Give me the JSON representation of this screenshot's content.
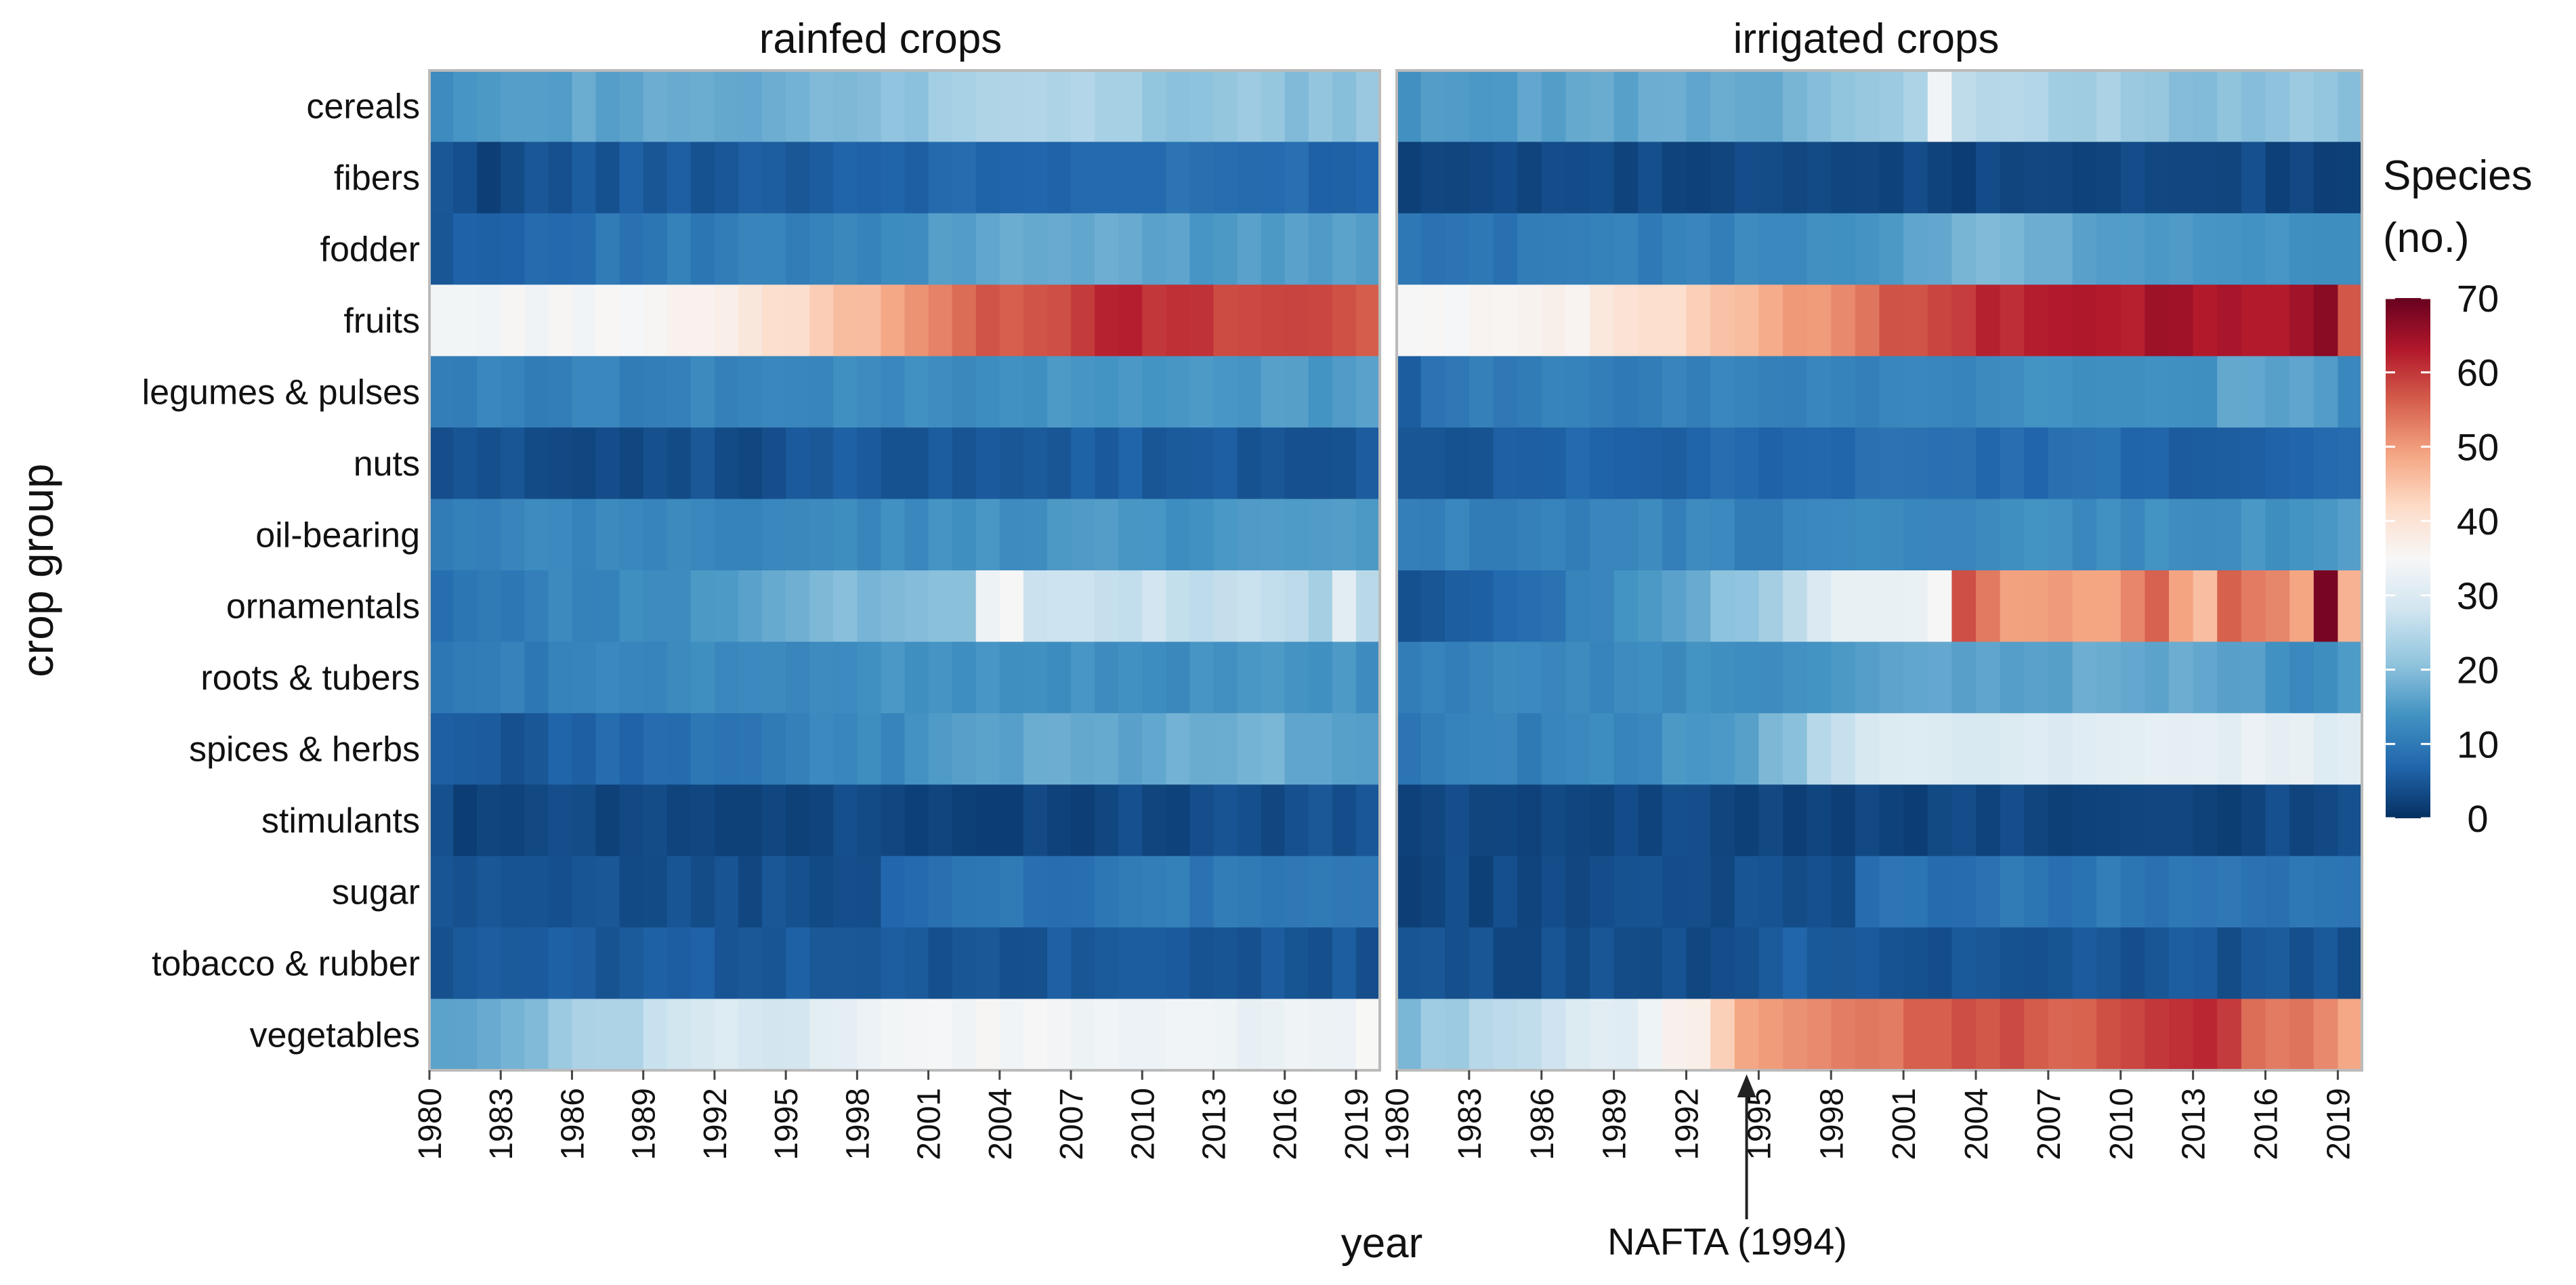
{
  "chart_data": {
    "type": "heatmap",
    "colorscale": "RdBu_r",
    "ylabel": "crop group",
    "xlabel": "year",
    "facets": [
      {
        "title": "rainfed crops",
        "key": "rainfed"
      },
      {
        "title": "irrigated crops",
        "key": "irrigated"
      }
    ],
    "categories": [
      "cereals",
      "fibers",
      "fodder",
      "fruits",
      "legumes & pulses",
      "nuts",
      "oil-bearing",
      "ornamentals",
      "roots & tubers",
      "spices & herbs",
      "stimulants",
      "sugar",
      "tobacco & rubber",
      "vegetables"
    ],
    "x_start": 1980,
    "x_end": 2020,
    "x_ticks": [
      "1980",
      "1983",
      "1986",
      "1989",
      "1992",
      "1995",
      "1998",
      "2001",
      "2004",
      "2007",
      "2010",
      "2013",
      "2016",
      "2019"
    ],
    "colorbar": {
      "title_line1": "Species",
      "title_line2": "(no.)",
      "min": 0,
      "max": 70,
      "ticks": [
        "0",
        "10",
        "20",
        "30",
        "40",
        "50",
        "60",
        "70"
      ]
    },
    "annotation": {
      "text": "NAFTA (1994)",
      "x": 1994,
      "facet": "irrigated"
    },
    "rainfed": {
      "cereals": [
        [
          1980,
          14
        ],
        [
          1982,
          16
        ],
        [
          1992,
          17
        ],
        [
          1998,
          19
        ],
        [
          2000,
          21
        ],
        [
          2002,
          24
        ],
        [
          2005,
          25
        ],
        [
          2008,
          23
        ],
        [
          2012,
          20
        ],
        [
          2014,
          22
        ],
        [
          2016,
          20
        ],
        [
          2019,
          21
        ]
      ],
      "fibers": [
        [
          1980,
          4
        ],
        [
          1982,
          3
        ],
        [
          1985,
          5
        ],
        [
          1995,
          6
        ],
        [
          2000,
          7
        ],
        [
          2005,
          7
        ],
        [
          2010,
          8
        ],
        [
          2015,
          8
        ],
        [
          2019,
          7
        ]
      ],
      "fodder": [
        [
          1980,
          6
        ],
        [
          1983,
          7
        ],
        [
          1986,
          9
        ],
        [
          1990,
          10
        ],
        [
          1995,
          11
        ],
        [
          1999,
          12
        ],
        [
          2001,
          15
        ],
        [
          2005,
          17
        ],
        [
          2010,
          17
        ],
        [
          2012,
          15
        ],
        [
          2015,
          16
        ],
        [
          2019,
          16
        ]
      ],
      "fruits": [
        [
          1980,
          34
        ],
        [
          1992,
          36
        ],
        [
          1993,
          39
        ],
        [
          1995,
          42
        ],
        [
          1997,
          45
        ],
        [
          1999,
          48
        ],
        [
          2000,
          52
        ],
        [
          2002,
          55
        ],
        [
          2004,
          57
        ],
        [
          2007,
          59
        ],
        [
          2008,
          62
        ],
        [
          2011,
          60
        ],
        [
          2014,
          58
        ],
        [
          2019,
          57
        ]
      ],
      "legumes & pulses": [
        [
          1980,
          11
        ],
        [
          1995,
          12
        ],
        [
          2000,
          13
        ],
        [
          2005,
          14
        ],
        [
          2010,
          14
        ],
        [
          2015,
          15
        ],
        [
          2019,
          15
        ]
      ],
      "nuts": [
        [
          1980,
          4
        ],
        [
          1992,
          4
        ],
        [
          1993,
          3
        ],
        [
          1995,
          5
        ],
        [
          2005,
          6
        ],
        [
          2010,
          6
        ],
        [
          2013,
          5
        ],
        [
          2019,
          5
        ]
      ],
      "oil-bearing": [
        [
          1980,
          10
        ],
        [
          1985,
          12
        ],
        [
          1990,
          12
        ],
        [
          1995,
          12
        ],
        [
          2000,
          13
        ],
        [
          2005,
          14
        ],
        [
          2008,
          15
        ],
        [
          2012,
          14
        ],
        [
          2016,
          15
        ],
        [
          2019,
          14
        ]
      ],
      "ornamentals": [
        [
          1980,
          9
        ],
        [
          1986,
          12
        ],
        [
          1990,
          13
        ],
        [
          1992,
          16
        ],
        [
          1995,
          19
        ],
        [
          2000,
          20
        ],
        [
          2002,
          21
        ],
        [
          2003,
          34
        ],
        [
          2004,
          36
        ],
        [
          2005,
          28
        ],
        [
          2010,
          27
        ],
        [
          2015,
          26
        ],
        [
          2017,
          23
        ],
        [
          2018,
          31
        ],
        [
          2019,
          25
        ]
      ],
      "roots & tubers": [
        [
          1980,
          10
        ],
        [
          1985,
          11
        ],
        [
          1990,
          12
        ],
        [
          1995,
          13
        ],
        [
          2000,
          14
        ],
        [
          2005,
          14
        ],
        [
          2010,
          13
        ],
        [
          2015,
          14
        ],
        [
          2019,
          14
        ]
      ],
      "spices & herbs": [
        [
          1980,
          6
        ],
        [
          1984,
          5
        ],
        [
          1987,
          7
        ],
        [
          1990,
          9
        ],
        [
          1995,
          11
        ],
        [
          2000,
          13
        ],
        [
          2002,
          16
        ],
        [
          2005,
          17
        ],
        [
          2010,
          17
        ],
        [
          2015,
          18
        ],
        [
          2019,
          16
        ]
      ],
      "stimulants": [
        [
          1980,
          3
        ],
        [
          2011,
          3
        ],
        [
          2012,
          4
        ],
        [
          2019,
          4
        ]
      ],
      "sugar": [
        [
          1980,
          4
        ],
        [
          1998,
          4
        ],
        [
          1999,
          8
        ],
        [
          2004,
          9
        ],
        [
          2010,
          10
        ],
        [
          2019,
          10
        ]
      ],
      "tobacco & rubber": [
        [
          1980,
          5
        ],
        [
          1995,
          6
        ],
        [
          1997,
          5
        ],
        [
          2019,
          5
        ]
      ],
      "vegetables": [
        [
          1980,
          15
        ],
        [
          1982,
          18
        ],
        [
          1985,
          22
        ],
        [
          1988,
          25
        ],
        [
          1992,
          30
        ],
        [
          1995,
          29
        ],
        [
          1998,
          33
        ],
        [
          2000,
          35
        ],
        [
          2005,
          34
        ],
        [
          2010,
          33
        ],
        [
          2015,
          33
        ],
        [
          2019,
          34
        ]
      ]
    },
    "irrigated": {
      "cereals": [
        [
          1980,
          14
        ],
        [
          1985,
          16
        ],
        [
          1990,
          17
        ],
        [
          1995,
          18
        ],
        [
          1999,
          22
        ],
        [
          2001,
          24
        ],
        [
          2002,
          34
        ],
        [
          2003,
          26
        ],
        [
          2005,
          24
        ],
        [
          2010,
          23
        ],
        [
          2013,
          19
        ],
        [
          2016,
          21
        ],
        [
          2019,
          21
        ]
      ],
      "fibers": [
        [
          1980,
          3
        ],
        [
          2019,
          3
        ]
      ],
      "fodder": [
        [
          1980,
          9
        ],
        [
          1986,
          10
        ],
        [
          1990,
          11
        ],
        [
          1995,
          12
        ],
        [
          1999,
          13
        ],
        [
          2002,
          17
        ],
        [
          2004,
          20
        ],
        [
          2006,
          17
        ],
        [
          2010,
          15
        ],
        [
          2013,
          14
        ],
        [
          2019,
          14
        ]
      ],
      "fruits": [
        [
          1980,
          35
        ],
        [
          1987,
          37
        ],
        [
          1990,
          40
        ],
        [
          1992,
          43
        ],
        [
          1993,
          45
        ],
        [
          1995,
          49
        ],
        [
          1998,
          51
        ],
        [
          2000,
          57
        ],
        [
          2003,
          60
        ],
        [
          2005,
          62
        ],
        [
          2010,
          63
        ],
        [
          2011,
          66
        ],
        [
          2015,
          62
        ],
        [
          2018,
          66
        ],
        [
          2019,
          58
        ]
      ],
      "legumes & pulses": [
        [
          1980,
          6
        ],
        [
          1981,
          10
        ],
        [
          1990,
          11
        ],
        [
          2000,
          12
        ],
        [
          2005,
          13
        ],
        [
          2010,
          13
        ],
        [
          2013,
          13
        ],
        [
          2014,
          16
        ],
        [
          2018,
          16
        ],
        [
          2019,
          13
        ]
      ],
      "nuts": [
        [
          1980,
          4
        ],
        [
          1983,
          4
        ],
        [
          1984,
          6
        ],
        [
          1990,
          7
        ],
        [
          2000,
          8
        ],
        [
          2010,
          8
        ],
        [
          2013,
          6
        ],
        [
          2019,
          7
        ]
      ],
      "oil-bearing": [
        [
          1980,
          11
        ],
        [
          1990,
          12
        ],
        [
          1995,
          11
        ],
        [
          2000,
          12
        ],
        [
          2005,
          13
        ],
        [
          2010,
          13
        ],
        [
          2015,
          14
        ],
        [
          2019,
          15
        ]
      ],
      "ornamentals": [
        [
          1980,
          5
        ],
        [
          1983,
          6
        ],
        [
          1985,
          8
        ],
        [
          1987,
          11
        ],
        [
          1990,
          14
        ],
        [
          1993,
          20
        ],
        [
          1995,
          24
        ],
        [
          1998,
          32
        ],
        [
          2001,
          33
        ],
        [
          2002,
          35
        ],
        [
          2003,
          57
        ],
        [
          2005,
          50
        ],
        [
          2009,
          50
        ],
        [
          2011,
          55
        ],
        [
          2013,
          45
        ],
        [
          2014,
          55
        ],
        [
          2017,
          50
        ],
        [
          2018,
          68
        ],
        [
          2019,
          47
        ]
      ],
      "roots & tubers": [
        [
          1980,
          11
        ],
        [
          1985,
          12
        ],
        [
          1990,
          13
        ],
        [
          1995,
          14
        ],
        [
          2000,
          16
        ],
        [
          2005,
          16
        ],
        [
          2010,
          17
        ],
        [
          2015,
          16
        ],
        [
          2018,
          12
        ],
        [
          2019,
          14
        ]
      ],
      "spices & herbs": [
        [
          1980,
          10
        ],
        [
          1985,
          11
        ],
        [
          1990,
          13
        ],
        [
          1993,
          15
        ],
        [
          1995,
          18
        ],
        [
          1997,
          24
        ],
        [
          1999,
          28
        ],
        [
          2001,
          31
        ],
        [
          2005,
          30
        ],
        [
          2010,
          31
        ],
        [
          2015,
          32
        ],
        [
          2019,
          31
        ]
      ],
      "stimulants": [
        [
          1980,
          3
        ],
        [
          2019,
          3
        ]
      ],
      "sugar": [
        [
          1980,
          3
        ],
        [
          1998,
          4
        ],
        [
          1999,
          8
        ],
        [
          2004,
          9
        ],
        [
          2010,
          10
        ],
        [
          2013,
          9
        ],
        [
          2019,
          9
        ]
      ],
      "tobacco & rubber": [
        [
          1980,
          4
        ],
        [
          1994,
          4
        ],
        [
          1995,
          6
        ],
        [
          2000,
          5
        ],
        [
          2005,
          4
        ],
        [
          2010,
          5
        ],
        [
          2013,
          5
        ],
        [
          2019,
          4
        ]
      ],
      "vegetables": [
        [
          1980,
          20
        ],
        [
          1983,
          24
        ],
        [
          1985,
          27
        ],
        [
          1990,
          33
        ],
        [
          1992,
          38
        ],
        [
          1994,
          48
        ],
        [
          1996,
          50
        ],
        [
          1999,
          53
        ],
        [
          2002,
          56
        ],
        [
          2005,
          58
        ],
        [
          2008,
          55
        ],
        [
          2010,
          59
        ],
        [
          2013,
          62
        ],
        [
          2015,
          55
        ],
        [
          2018,
          52
        ],
        [
          2019,
          48
        ]
      ]
    }
  }
}
